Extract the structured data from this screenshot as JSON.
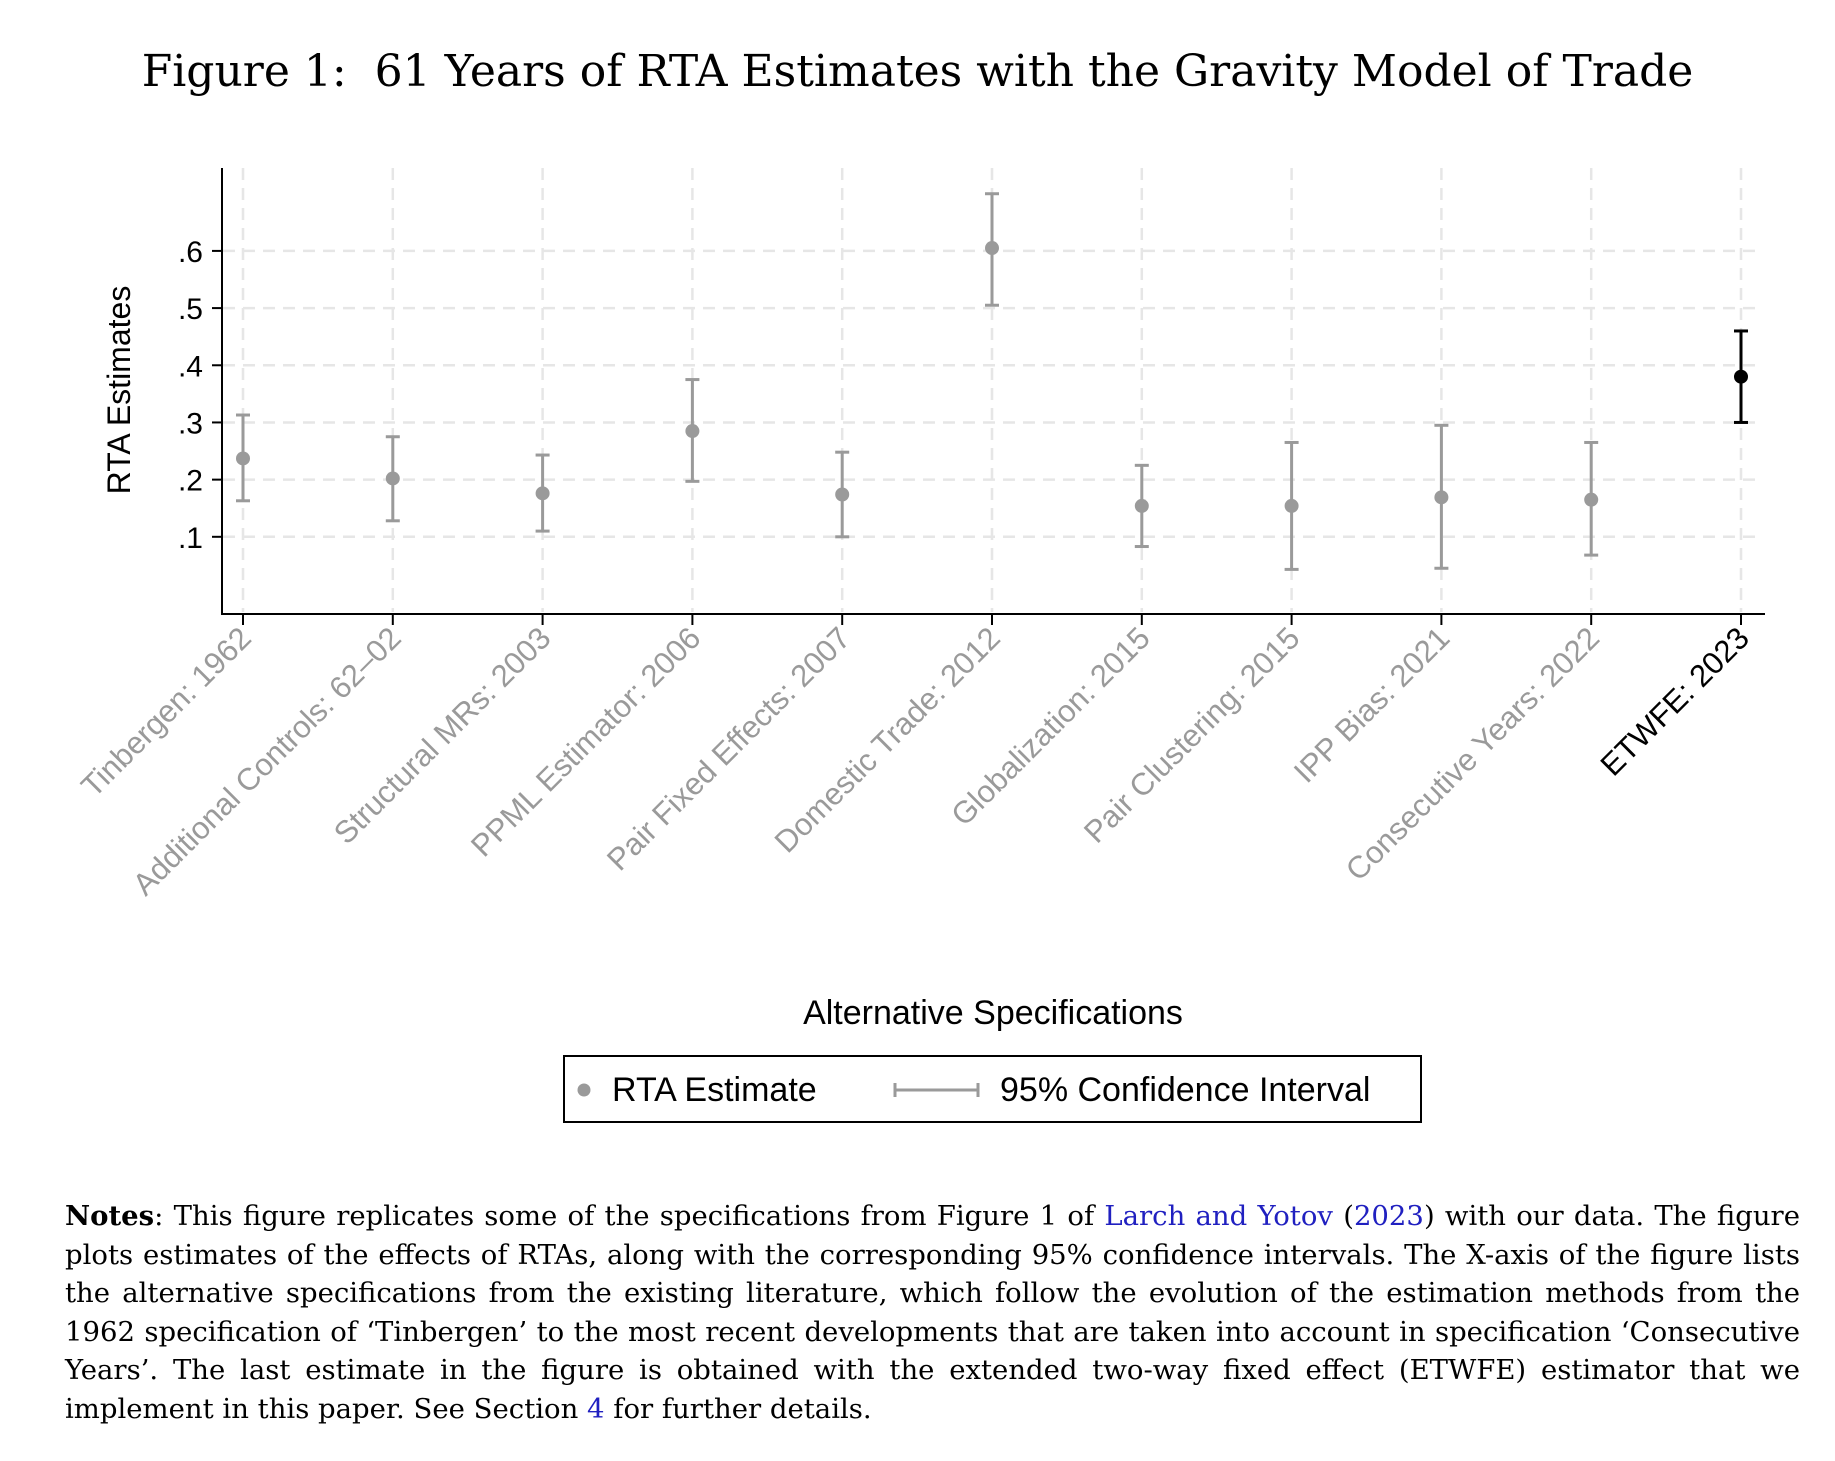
{
  "figure_title": "Figure 1:  61 Years of RTA Estimates with the Gravity Model of Trade",
  "chart_data": {
    "type": "scatter",
    "ylabel": "RTA Estimates",
    "xlabel": "Alternative Specifications",
    "ylim": [
      -0.035,
      0.745
    ],
    "y_ticks": [
      0.1,
      0.2,
      0.3,
      0.4,
      0.5,
      0.6
    ],
    "y_tick_labels": [
      ".1",
      ".2",
      ".3",
      ".4",
      ".5",
      ".6"
    ],
    "grid": true,
    "categories": [
      "Tinbergen: 1962",
      "Additional Controls: 62–02",
      "Structural MRs: 2003",
      "PPML Estimator: 2006",
      "Pair Fixed Effects: 2007",
      "Domestic Trade: 2012",
      "Globalization: 2015",
      "Pair Clustering: 2015",
      "IPP Bias: 2021",
      "Consecutive Years: 2022",
      "ETWFE: 2023"
    ],
    "estimates": [
      0.237,
      0.202,
      0.176,
      0.285,
      0.174,
      0.605,
      0.154,
      0.154,
      0.169,
      0.165,
      0.38
    ],
    "ci_low": [
      0.163,
      0.128,
      0.11,
      0.197,
      0.1,
      0.505,
      0.083,
      0.043,
      0.045,
      0.068,
      0.3
    ],
    "ci_high": [
      0.313,
      0.275,
      0.243,
      0.375,
      0.248,
      0.7,
      0.225,
      0.265,
      0.295,
      0.265,
      0.46
    ],
    "highlight_index": 10,
    "colors": {
      "default": "#9a9a9a",
      "highlight": "#000000",
      "grid": "#e6e6e6"
    },
    "legend": {
      "position": "bottom-center",
      "items": [
        "RTA Estimate",
        "95% Confidence Interval"
      ]
    }
  },
  "notes": {
    "label": "Notes",
    "before_ref": ": This figure replicates some of the specifications from Figure 1 of ",
    "ref_authors": "Larch and Yotov",
    "ref_open": " (",
    "ref_year": "2023",
    "after_ref": ") with our data. The figure plots estimates of the effects of RTAs, along with the corresponding 95% confidence intervals. The X-axis of the figure lists the alternative specifications from the existing literature, which follow the evolution of the estimation methods from the 1962 specification of ‘Tinbergen’ to the most recent developments that are taken into account in specification ‘Consecutive Years’. The last estimate in the figure is obtained with the extended two-way fixed effect (ETWFE) estimator that we implement in this paper. See Section ",
    "section_ref": "4",
    "ending": " for further details."
  }
}
